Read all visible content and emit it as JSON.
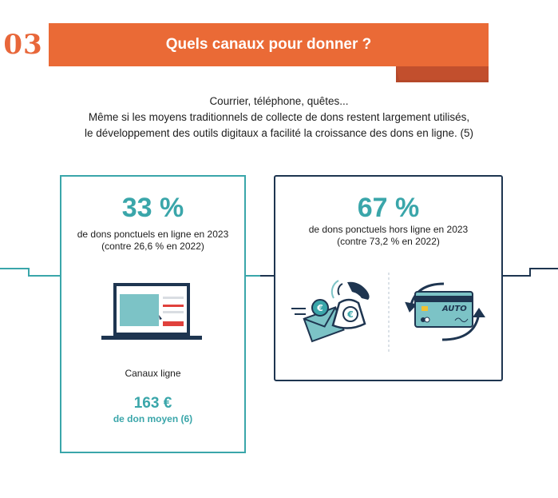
{
  "header": {
    "number": "03",
    "title": "Quels canaux pour donner ?"
  },
  "intro": {
    "line1": "Courrier, téléphone, quêtes...",
    "line2": "Même si les moyens traditionnels de collecte de dons restent largement utilisés,",
    "line3": "le développement des outils digitaux a facilité la croissance des dons en ligne. (5)"
  },
  "online": {
    "percent": "33 %",
    "desc_line1": "de dons ponctuels en ligne en 2023",
    "desc_line2": "(contre 26,6 % en 2022)",
    "channel_label": "Canaux ligne",
    "average": "163 €",
    "average_label": "de don moyen (6)",
    "icon": "laptop-icon"
  },
  "offline": {
    "percent": "67 %",
    "desc_line1": "de dons ponctuels hors ligne en 2023",
    "desc_line2": "(contre 73,2 % en 2022)",
    "card_text": "AUTO",
    "icons": [
      "envelope-euro-icon",
      "phone-euro-icon",
      "card-auto-renew-icon"
    ]
  },
  "colors": {
    "accent_orange": "#ea6a36",
    "accent_teal": "#3aa6aa",
    "navy": "#1e3550"
  }
}
